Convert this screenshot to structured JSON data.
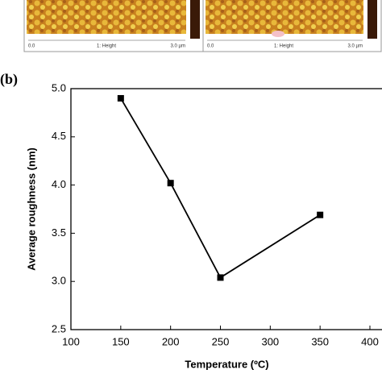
{
  "panels": [
    {
      "scale_start": "0.0",
      "channel": "1: Height",
      "scale_end": "3.0 µm"
    },
    {
      "scale_start": "0.0",
      "channel": "1: Height",
      "scale_end": "3.0 µm"
    }
  ],
  "chart_data": {
    "type": "line",
    "panel_label": "(b)",
    "x_label": "Temperature (ºC)",
    "y_label": "Average roughness (nm)",
    "series": [
      {
        "name": "Average roughness",
        "color": "#000000",
        "x": [
          150,
          200,
          250,
          350
        ],
        "values": [
          4.9,
          4.02,
          3.04,
          3.69
        ]
      }
    ],
    "xlim": [
      100,
      400
    ],
    "xticks": [
      100,
      150,
      200,
      250,
      300,
      350,
      400
    ],
    "ylim": [
      2.5,
      5.0
    ],
    "yticks": [
      {
        "value": 2.5,
        "label": "2.5"
      },
      {
        "value": 3.0,
        "label": "3.0"
      },
      {
        "value": 3.5,
        "label": "3.5"
      },
      {
        "value": 4.0,
        "label": "4.0"
      },
      {
        "value": 4.5,
        "label": "4.5"
      },
      {
        "value": 5.0,
        "label": "5.0"
      }
    ]
  }
}
